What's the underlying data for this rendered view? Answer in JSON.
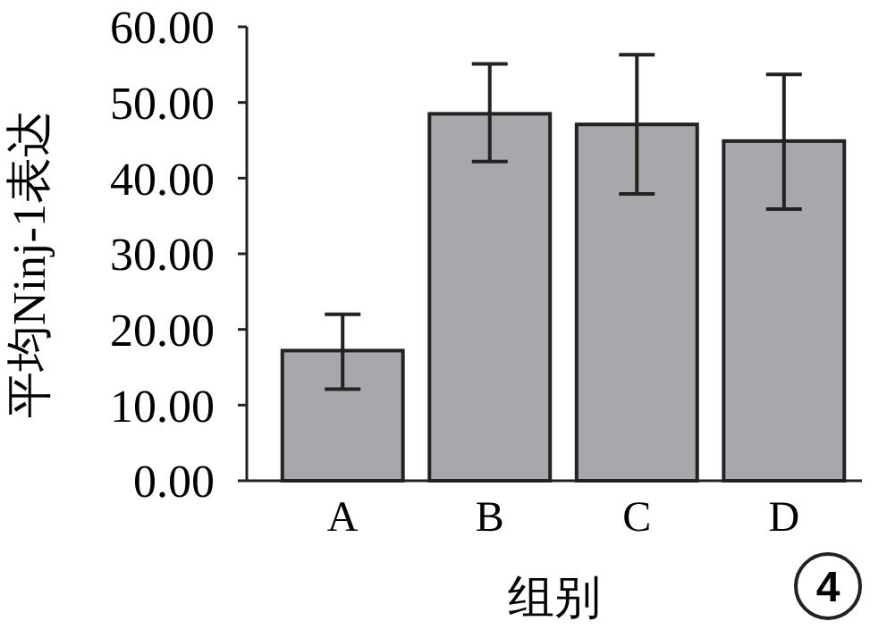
{
  "chart_data": {
    "type": "bar",
    "xlabel": "组别",
    "ylabel": "平均Ninj-1表达",
    "categories": [
      "A",
      "B",
      "C",
      "D"
    ],
    "values": [
      17.2,
      48.5,
      47.1,
      44.9
    ],
    "color": "#a7a8ab",
    "errors": [
      [
        12.1,
        22.0
      ],
      [
        42.2,
        55.1
      ],
      [
        37.9,
        56.3
      ],
      [
        35.9,
        53.7
      ]
    ],
    "ylim": [
      0,
      60
    ],
    "yticks": [
      {
        "value": 0,
        "label": "0.00"
      },
      {
        "value": 10,
        "label": "10.00"
      },
      {
        "value": 20,
        "label": "20.00"
      },
      {
        "value": 30,
        "label": "30.00"
      },
      {
        "value": 40,
        "label": "40.00"
      },
      {
        "value": 50,
        "label": "50.00"
      },
      {
        "value": 60,
        "label": "60.00"
      }
    ],
    "grid": false,
    "annotations": [
      "4"
    ]
  }
}
